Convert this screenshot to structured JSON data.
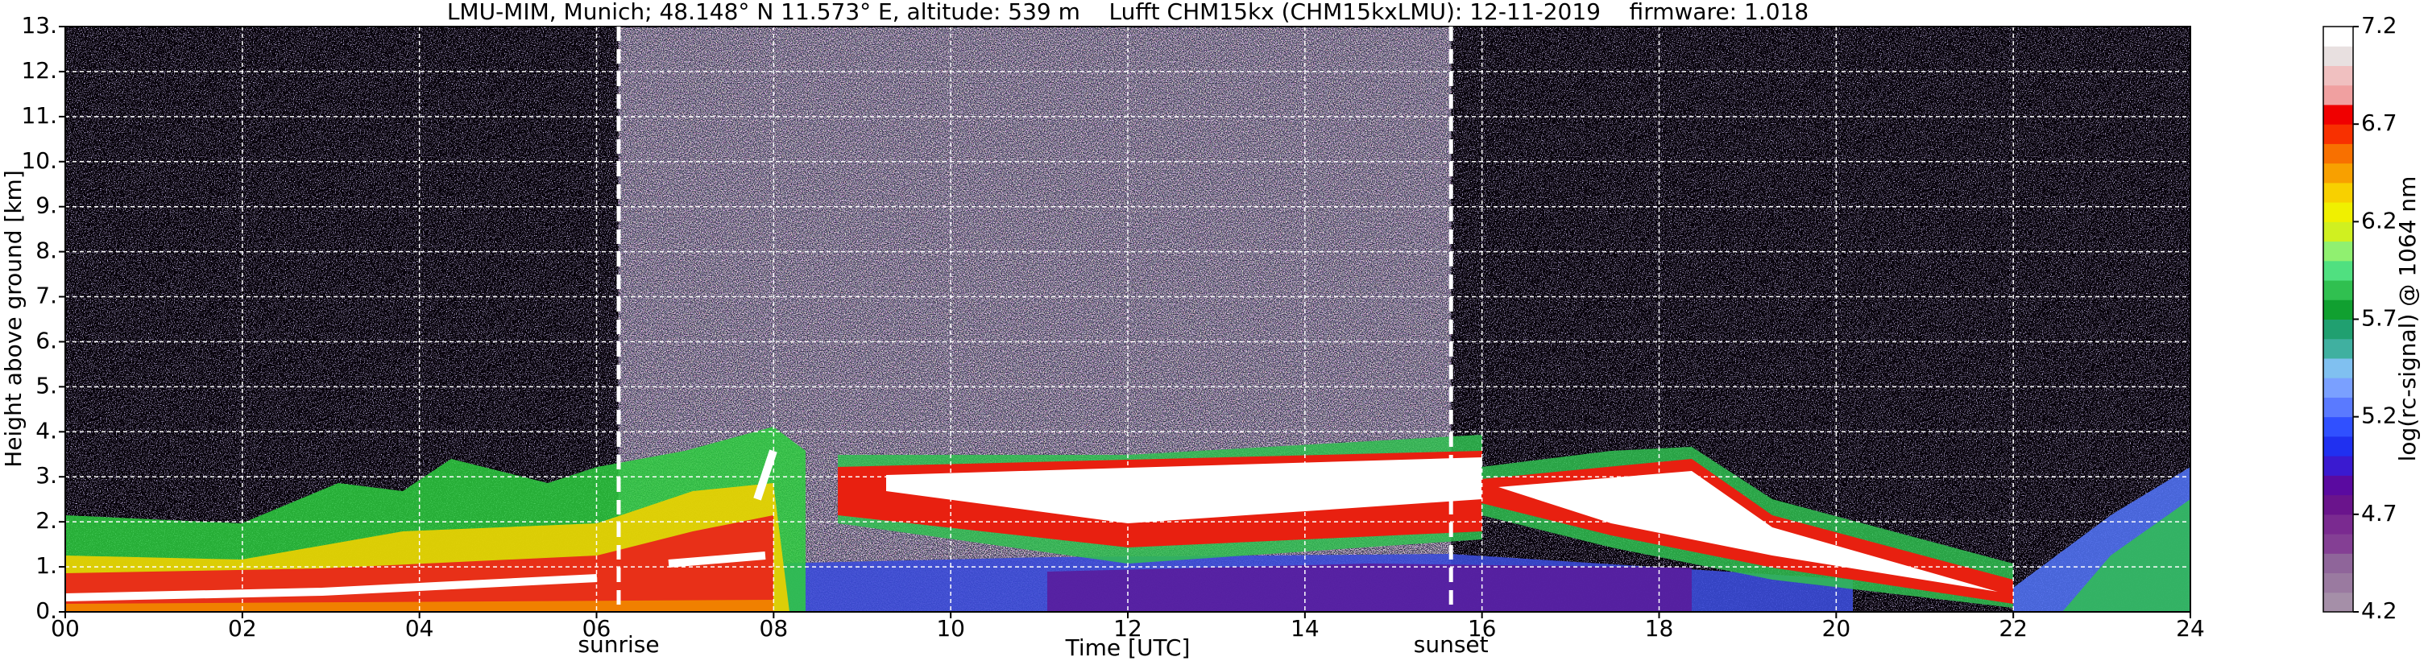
{
  "chart_data": {
    "type": "heatmap",
    "title": "LMU-MIM, Munich; 48.148° N 11.573° E, altitude: 539 m    Lufft CHM15kx (CHM15kxLMU): 12-11-2019    firmware: 1.018",
    "x_label": "Time [UTC]",
    "y_label": "Height above ground [km]",
    "xlim": [
      0,
      24
    ],
    "xticks": [
      {
        "value": 0,
        "label": "00"
      },
      {
        "value": 2,
        "label": "02"
      },
      {
        "value": 4,
        "label": "04"
      },
      {
        "value": 6,
        "label": "06"
      },
      {
        "value": 8,
        "label": "08"
      },
      {
        "value": 10,
        "label": "10"
      },
      {
        "value": 12,
        "label": "12"
      },
      {
        "value": 14,
        "label": "14"
      },
      {
        "value": 16,
        "label": "16"
      },
      {
        "value": 18,
        "label": "18"
      },
      {
        "value": 20,
        "label": "20"
      },
      {
        "value": 22,
        "label": "22"
      },
      {
        "value": 24,
        "label": "24"
      }
    ],
    "ylim": [
      0,
      13
    ],
    "yticks": [
      {
        "value": 0,
        "label": "0."
      },
      {
        "value": 1,
        "label": "1."
      },
      {
        "value": 2,
        "label": "2."
      },
      {
        "value": 3,
        "label": "3."
      },
      {
        "value": 4,
        "label": "4."
      },
      {
        "value": 5,
        "label": "5."
      },
      {
        "value": 6,
        "label": "6."
      },
      {
        "value": 7,
        "label": "7."
      },
      {
        "value": 8,
        "label": "8."
      },
      {
        "value": 9,
        "label": "9."
      },
      {
        "value": 10,
        "label": "10."
      },
      {
        "value": 11,
        "label": "11."
      },
      {
        "value": 12,
        "label": "12."
      },
      {
        "value": 13,
        "label": "13."
      }
    ],
    "grid": true,
    "annotations": [
      {
        "x": 6.25,
        "label": "sunrise"
      },
      {
        "x": 15.65,
        "label": "sunset"
      }
    ],
    "colorbar": {
      "label": "log(rc-signal) @ 1064 nm",
      "lim": [
        4.2,
        7.2
      ],
      "ticks": [
        4.2,
        4.7,
        5.2,
        5.7,
        6.2,
        6.7,
        7.2
      ],
      "colors": [
        "#a58fa8",
        "#9a7aa0",
        "#8f659a",
        "#843f94",
        "#7a2a90",
        "#6a148c",
        "#5a0aa0",
        "#3a1ad0",
        "#2030f0",
        "#3050ff",
        "#5a7aff",
        "#7aa0ff",
        "#80c0f0",
        "#40b0a0",
        "#20a070",
        "#10a030",
        "#30c050",
        "#50e080",
        "#90f070",
        "#d0f020",
        "#f0f000",
        "#f8d000",
        "#f8a000",
        "#f87000",
        "#f83000",
        "#f00000",
        "#f0a0a0",
        "#f0c0c0",
        "#e8e0e0",
        "#ffffff"
      ]
    }
  }
}
